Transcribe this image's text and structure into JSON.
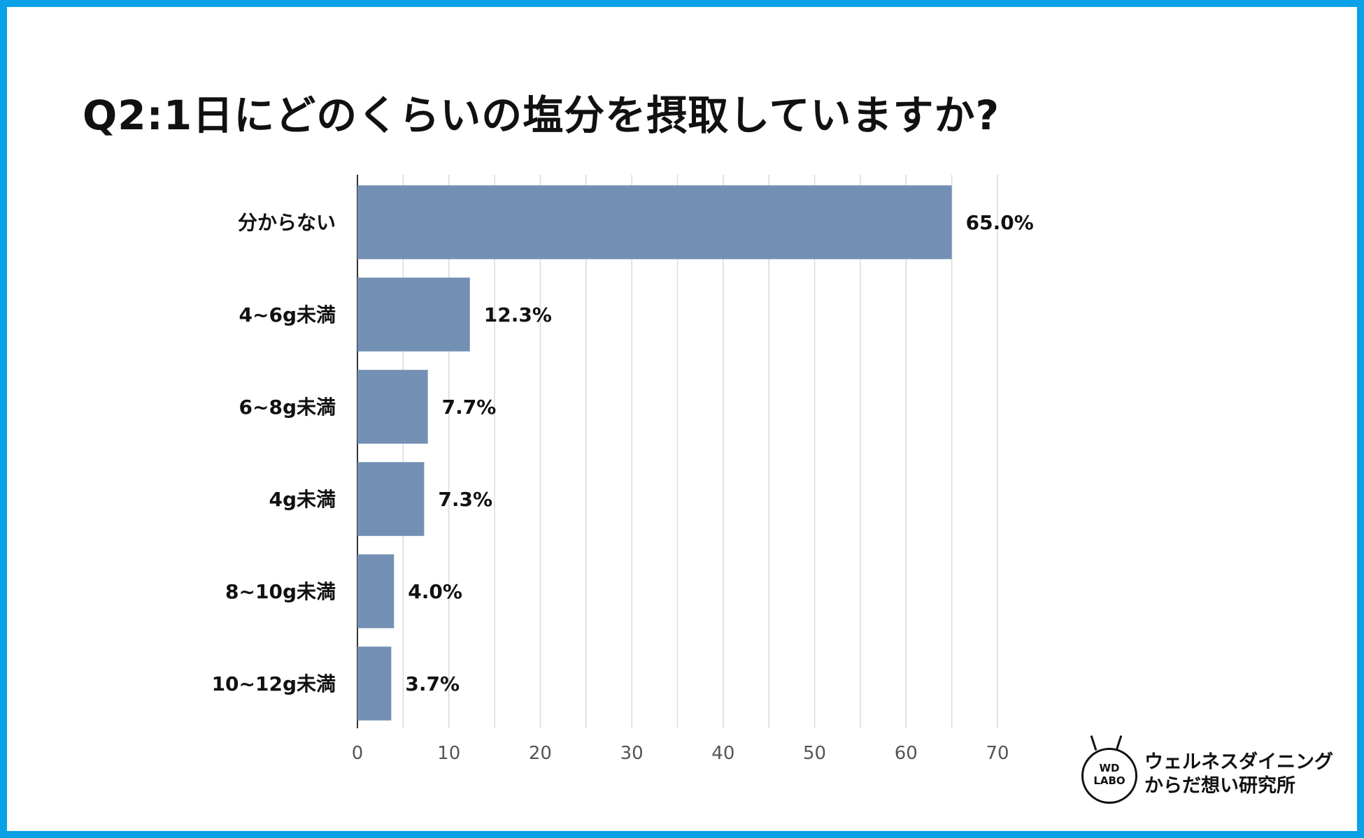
{
  "colors": {
    "frame": "#0aa1e6",
    "bar": "#7390b4",
    "grid": "#d9d9d9",
    "axis": "#333333"
  },
  "title": "Q2:1日にどのくらいの塩分を摂取していますか?",
  "chart_data": {
    "type": "bar",
    "orientation": "horizontal",
    "categories": [
      "分からない",
      "4~6g未満",
      "6~8g未満",
      "4g未満",
      "8~10g未満",
      "10~12g未満"
    ],
    "values": [
      65.0,
      12.3,
      7.7,
      7.3,
      4.0,
      3.7
    ],
    "value_labels": [
      "65.0%",
      "12.3%",
      "7.7%",
      "7.3%",
      "4.0%",
      "3.7%"
    ],
    "x_ticks": [
      0,
      10,
      20,
      30,
      40,
      50,
      60,
      70
    ],
    "xlim": [
      0,
      70
    ],
    "grid": true,
    "legend": false
  },
  "logo": {
    "mark_line1": "WD",
    "mark_line2": "LABO",
    "name_line1": "ウェルネスダイニング",
    "name_line2": "からだ想い研究所",
    "icon": "flask-icon"
  }
}
